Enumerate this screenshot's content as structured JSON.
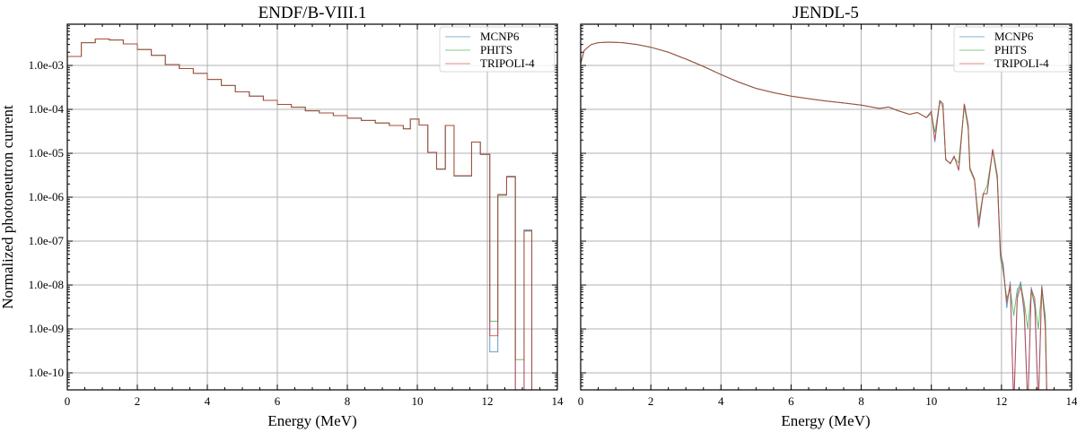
{
  "ylabel": "Normalized photoneutron current",
  "chart_data": [
    {
      "type": "line",
      "style": "step",
      "title": "ENDF/B-VIII.1",
      "xlabel": "Energy (MeV)",
      "ylabel": "Normalized photoneutron current",
      "xlim": [
        0,
        14
      ],
      "ylim": [
        0.0087,
        4.1e-11
      ],
      "yscale": "log",
      "grid": true,
      "xticks": [
        0,
        2,
        4,
        6,
        8,
        10,
        12,
        14
      ],
      "xticklabels": [
        "0",
        "2",
        "4",
        "6",
        "8",
        "10",
        "12",
        "14"
      ],
      "yticks": [
        0.001,
        0.0001,
        1e-05,
        1e-06,
        1e-07,
        1e-08,
        1e-09,
        1e-10
      ],
      "yticklabels": [
        "1.0e-03",
        "1.0e-04",
        "1.0e-05",
        "1.0e-06",
        "1.0e-07",
        "1.0e-08",
        "1.0e-09",
        "1.0e-10"
      ],
      "legend_position": "top-right",
      "bin_edges": [
        0,
        0.4,
        0.8,
        1.2,
        1.6,
        2.0,
        2.4,
        2.8,
        3.2,
        3.6,
        4.0,
        4.4,
        4.8,
        5.2,
        5.6,
        6.0,
        6.4,
        6.8,
        7.2,
        7.6,
        8.0,
        8.4,
        8.8,
        9.2,
        9.6,
        9.8,
        10.05,
        10.3,
        10.55,
        10.8,
        11.05,
        11.55,
        11.8,
        12.07,
        12.3,
        12.55,
        12.8,
        13.05,
        13.27,
        14.0
      ],
      "series": [
        {
          "name": "MCNP6",
          "color": "#1f77b4",
          "values": [
            0.0016,
            0.0033,
            0.004,
            0.0038,
            0.0031,
            0.0023,
            0.0017,
            0.00105,
            0.00085,
            0.00066,
            0.00048,
            0.00035,
            0.00025,
            0.0002,
            0.00016,
            0.00013,
            0.000112,
            9.3e-05,
            8.3e-05,
            7.2e-05,
            6.3e-05,
            5.6e-05,
            4.9e-05,
            4.3e-05,
            3.6e-05,
            6e-05,
            4.4e-05,
            1.05e-05,
            4.3e-06,
            4.3e-05,
            3e-06,
            1.8e-05,
            9.4e-06,
            3e-10,
            1.15e-06,
            3e-06,
            0,
            1.8e-07,
            0
          ]
        },
        {
          "name": "PHITS",
          "color": "#2ca02c",
          "values": [
            0.0016,
            0.0033,
            0.004,
            0.0038,
            0.0031,
            0.0023,
            0.0017,
            0.00105,
            0.00085,
            0.00066,
            0.00048,
            0.00035,
            0.00025,
            0.0002,
            0.00016,
            0.00013,
            0.000112,
            9.3e-05,
            8.3e-05,
            7.2e-05,
            6.3e-05,
            5.6e-05,
            4.9e-05,
            4.3e-05,
            3.6e-05,
            6e-05,
            4.4e-05,
            1.05e-05,
            4.4e-06,
            4.3e-05,
            3.1e-06,
            1.8e-05,
            9.5e-06,
            1.5e-09,
            1.1e-06,
            2.9e-06,
            2e-10,
            1.7e-07,
            0
          ]
        },
        {
          "name": "TRIPOLI-4",
          "color": "#d62728",
          "values": [
            0.0016,
            0.0033,
            0.004,
            0.0038,
            0.0031,
            0.0023,
            0.0017,
            0.00105,
            0.00085,
            0.00066,
            0.00048,
            0.00035,
            0.00025,
            0.0002,
            0.00016,
            0.00013,
            0.000112,
            9.3e-05,
            8.3e-05,
            7.2e-05,
            6.3e-05,
            5.6e-05,
            4.9e-05,
            4.3e-05,
            3.6e-05,
            6e-05,
            4.4e-05,
            1.05e-05,
            4.4e-06,
            4.3e-05,
            3.1e-06,
            1.8e-05,
            9.5e-06,
            7e-10,
            1.15e-06,
            2.9e-06,
            0,
            1.7e-07,
            0
          ]
        }
      ]
    },
    {
      "type": "line",
      "style": "line",
      "title": "JENDL-5",
      "xlabel": "Energy (MeV)",
      "xlim": [
        0,
        14
      ],
      "ylim": [
        0.0087,
        4.1e-11
      ],
      "yscale": "log",
      "grid": true,
      "xticks": [
        0,
        2,
        4,
        6,
        8,
        10,
        12,
        14
      ],
      "xticklabels": [
        "0",
        "2",
        "4",
        "6",
        "8",
        "10",
        "12",
        "14"
      ],
      "yticks": [
        0.001,
        0.0001,
        1e-05,
        1e-06,
        1e-07,
        1e-08,
        1e-09,
        1e-10
      ],
      "legend_position": "top-right",
      "x": [
        0,
        0.1,
        0.3,
        0.5,
        0.8,
        1.2,
        1.6,
        2,
        2.5,
        3,
        3.5,
        4,
        4.5,
        5,
        5.5,
        6,
        6.5,
        7,
        7.5,
        8,
        8.52,
        8.78,
        9.04,
        9.38,
        9.6,
        9.86,
        10.0,
        10.1,
        10.24,
        10.33,
        10.41,
        10.54,
        10.65,
        10.78,
        10.94,
        11.05,
        11.1,
        11.23,
        11.35,
        11.48,
        11.59,
        11.75,
        11.88,
        11.97,
        12.05,
        12.15,
        12.25,
        12.35,
        12.45,
        12.55,
        12.65,
        12.75,
        12.85,
        12.95,
        13.05,
        13.15,
        13.25,
        13.3
      ],
      "series": [
        {
          "name": "MCNP6",
          "color": "#1f77b4",
          "values": [
            0.0011,
            0.0022,
            0.003,
            0.0033,
            0.0034,
            0.0033,
            0.003,
            0.0026,
            0.002,
            0.0014,
            0.00095,
            0.00062,
            0.00042,
            0.0003,
            0.00024,
            0.0002,
            0.000175,
            0.000155,
            0.00014,
            0.000125,
            0.000105,
            0.000113,
            9.4e-05,
            7.7e-05,
            8.5e-05,
            6.5e-05,
            9e-05,
            1.8e-05,
            0.00016,
            0.000135,
            7.3e-06,
            5.8e-06,
            8.6e-06,
            4e-06,
            0.000135,
            4.4e-05,
            4.6e-06,
            2.6e-06,
            2e-07,
            1.2e-06,
            1.2e-06,
            1.25e-05,
            3.1e-06,
            5.5e-08,
            3e-08,
            3e-09,
            1.2e-08,
            0,
            6e-09,
            1.2e-08,
            2e-09,
            0,
            9e-09,
            3e-09,
            0,
            1e-08,
            1.5e-09,
            0
          ]
        },
        {
          "name": "PHITS",
          "color": "#2ca02c",
          "values": [
            0.0011,
            0.0022,
            0.003,
            0.0033,
            0.0034,
            0.0033,
            0.003,
            0.0026,
            0.002,
            0.0014,
            0.00095,
            0.00062,
            0.00042,
            0.0003,
            0.00024,
            0.0002,
            0.000175,
            0.000155,
            0.00014,
            0.000125,
            0.000105,
            0.000113,
            9.4e-05,
            7.7e-05,
            8.5e-05,
            6.5e-05,
            8e-05,
            3e-05,
            0.00015,
            0.00011,
            7e-06,
            6e-06,
            8e-06,
            6e-06,
            0.00012,
            3.5e-05,
            4.2e-06,
            2.4e-06,
            3e-07,
            1.2e-06,
            1.8e-06,
            1.15e-05,
            2.5e-06,
            4e-08,
            2e-08,
            5e-09,
            8e-09,
            2e-09,
            8e-09,
            1e-08,
            4e-09,
            1e-09,
            7e-09,
            4e-09,
            1e-09,
            8e-09,
            2e-09,
            0
          ]
        },
        {
          "name": "TRIPOLI-4",
          "color": "#d62728",
          "values": [
            0.0011,
            0.0022,
            0.003,
            0.0033,
            0.0034,
            0.0033,
            0.003,
            0.0026,
            0.002,
            0.0014,
            0.00095,
            0.00062,
            0.00042,
            0.0003,
            0.00024,
            0.0002,
            0.000175,
            0.000155,
            0.00014,
            0.000125,
            0.000105,
            0.000113,
            9.4e-05,
            7.7e-05,
            8.5e-05,
            6.5e-05,
            9e-05,
            2e-05,
            0.000155,
            0.000135,
            7.3e-06,
            5.8e-06,
            8.6e-06,
            4.2e-06,
            0.000133,
            4.4e-05,
            4.6e-06,
            2.6e-06,
            2.2e-07,
            1.2e-06,
            1.2e-06,
            1.23e-05,
            3.1e-06,
            5.5e-08,
            2.5e-08,
            4e-09,
            1e-08,
            0,
            5e-09,
            9e-09,
            3e-09,
            0,
            8e-09,
            5e-09,
            0,
            9e-09,
            1e-09,
            0
          ]
        }
      ]
    }
  ]
}
